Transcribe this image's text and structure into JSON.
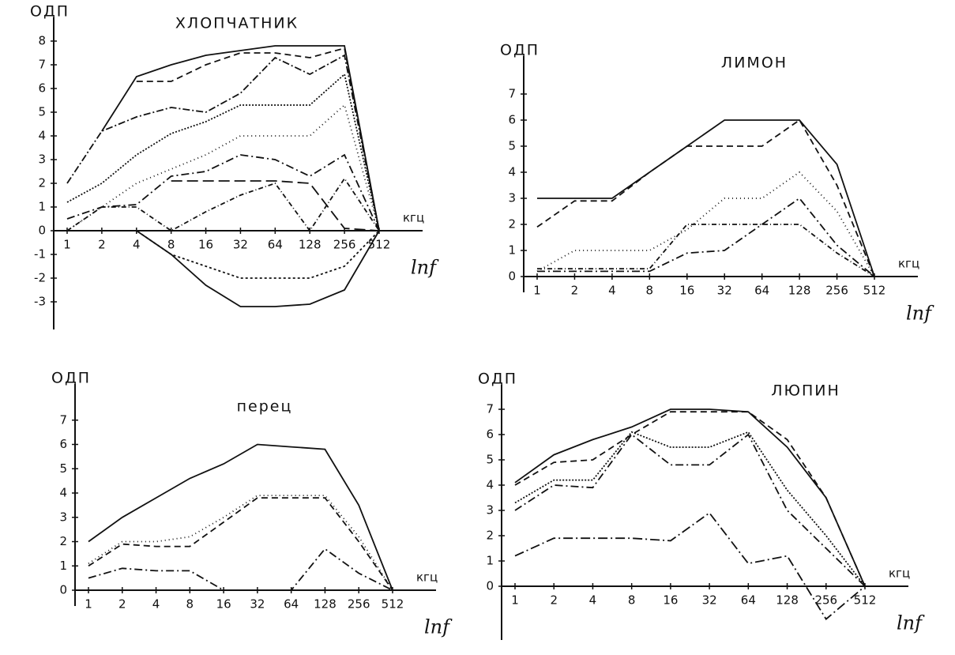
{
  "chart_data": [
    {
      "type": "line",
      "title": "ХЛОПЧАТНИК",
      "ylabel": "ОДП",
      "xlabel": "кгц",
      "x_scale_label": "lnf",
      "log_x": true,
      "x": [
        1,
        2,
        4,
        8,
        16,
        32,
        64,
        128,
        256,
        512
      ],
      "xlim": [
        1,
        512
      ],
      "xticks": [
        1,
        2,
        4,
        8,
        16,
        32,
        64,
        128,
        256,
        512
      ],
      "ylim": [
        -3.5,
        8.5
      ],
      "yticks": [
        -3,
        -2,
        -1,
        0,
        1,
        2,
        3,
        4,
        5,
        6,
        7,
        8
      ],
      "series": [
        {
          "color": "#111",
          "dash": "none",
          "values": [
            null,
            4.2,
            6.5,
            7.0,
            7.4,
            7.6,
            7.8,
            7.8,
            7.8,
            0
          ]
        },
        {
          "color": "#111",
          "dash": "8 5",
          "values": [
            null,
            null,
            6.3,
            6.3,
            7.0,
            7.5,
            7.5,
            7.3,
            7.7,
            0
          ]
        },
        {
          "color": "#111",
          "dash": "9 3 2 3",
          "values": [
            2,
            4.2,
            4.8,
            5.2,
            5.0,
            5.8,
            7.3,
            6.6,
            7.4,
            0
          ]
        },
        {
          "color": "#111",
          "dash": "2 2",
          "values": [
            1.2,
            2.0,
            3.2,
            4.1,
            4.6,
            5.3,
            5.3,
            5.3,
            6.6,
            0
          ]
        },
        {
          "color": "#111",
          "dash": "1 4",
          "values": [
            0,
            1.0,
            2.0,
            2.6,
            3.2,
            4.0,
            4.0,
            4.0,
            5.3,
            0
          ]
        },
        {
          "color": "#111",
          "dash": "10 4 2 4",
          "values": [
            0.5,
            1.0,
            1.1,
            2.3,
            2.5,
            3.2,
            3.0,
            2.3,
            3.2,
            0
          ]
        },
        {
          "color": "#111",
          "dash": "14 6",
          "values": [
            null,
            null,
            null,
            2.1,
            2.1,
            2.1,
            2.1,
            2.0,
            0.1,
            0
          ]
        },
        {
          "color": "#111",
          "dash": "6 3 1 3",
          "values": [
            0,
            1.0,
            1.0,
            0,
            0.8,
            1.5,
            2.0,
            0,
            2.2,
            0
          ]
        },
        {
          "color": "#111",
          "dash": "3 3",
          "values": [
            0,
            0,
            0,
            -1,
            -1.5,
            -2,
            -2,
            -2,
            -1.5,
            0
          ]
        },
        {
          "color": "#111",
          "dash": "none",
          "values": [
            0,
            0,
            0,
            -1,
            -2.3,
            -3.2,
            -3.2,
            -3.1,
            -2.5,
            0
          ]
        }
      ]
    },
    {
      "type": "line",
      "title": "ЛИМОН",
      "ylabel": "ОДП",
      "xlabel": "кгц",
      "x_scale_label": "lnf",
      "log_x": true,
      "x": [
        1,
        2,
        4,
        8,
        16,
        32,
        64,
        128,
        256,
        512
      ],
      "xlim": [
        1,
        512
      ],
      "xticks": [
        1,
        2,
        4,
        8,
        16,
        32,
        64,
        128,
        256,
        512
      ],
      "ylim": [
        0,
        8
      ],
      "yticks": [
        0,
        1,
        2,
        3,
        4,
        5,
        6,
        7
      ],
      "series": [
        {
          "color": "#111",
          "dash": "none",
          "values": [
            3,
            3,
            3,
            4,
            5,
            6,
            6,
            6,
            4.3,
            0
          ]
        },
        {
          "color": "#111",
          "dash": "8 5",
          "values": [
            1.9,
            2.9,
            2.9,
            4,
            5,
            5,
            5,
            6,
            3.5,
            0
          ]
        },
        {
          "color": "#111",
          "dash": "1 4",
          "values": [
            0.2,
            1,
            1,
            1,
            1.8,
            3,
            3,
            4,
            2.5,
            0
          ]
        },
        {
          "color": "#111",
          "dash": "10 4 2 4",
          "values": [
            0.2,
            0.2,
            0.2,
            0.2,
            0.9,
            1.0,
            2.0,
            3.0,
            1.2,
            0
          ]
        },
        {
          "color": "#111",
          "dash": "6 3 1 3",
          "values": [
            0.3,
            0.3,
            0.3,
            0.3,
            2,
            2,
            2,
            2,
            0.9,
            0
          ]
        }
      ]
    },
    {
      "type": "line",
      "title": "перец",
      "ylabel": "ОДП",
      "xlabel": "кгц",
      "x_scale_label": "lnf",
      "log_x": true,
      "x": [
        1,
        2,
        4,
        8,
        16,
        32,
        64,
        128,
        256,
        512
      ],
      "xlim": [
        1,
        512
      ],
      "xticks": [
        1,
        2,
        4,
        8,
        16,
        32,
        64,
        128,
        256,
        512
      ],
      "ylim": [
        0,
        8
      ],
      "yticks": [
        0,
        1,
        2,
        3,
        4,
        5,
        6,
        7
      ],
      "series": [
        {
          "color": "#111",
          "dash": "none",
          "values": [
            2,
            3,
            3.8,
            4.6,
            5.2,
            6,
            5.9,
            5.8,
            3.5,
            0
          ]
        },
        {
          "color": "#111",
          "dash": "1 4",
          "values": [
            1.1,
            2,
            2,
            2.2,
            3,
            3.9,
            3.9,
            3.9,
            2.2,
            0
          ]
        },
        {
          "color": "#111",
          "dash": "8 5",
          "values": [
            1,
            1.9,
            1.8,
            1.8,
            2.8,
            3.8,
            3.8,
            3.8,
            2,
            0
          ]
        },
        {
          "color": "#111",
          "dash": "10 4 2 4",
          "values": [
            0.5,
            0.9,
            0.8,
            0.8,
            0,
            0,
            0,
            1.7,
            0.7,
            0
          ]
        }
      ]
    },
    {
      "type": "line",
      "title": "ЛЮПИН",
      "ylabel": "ОДП",
      "xlabel": "кгц",
      "x_scale_label": "lnf",
      "log_x": true,
      "x": [
        1,
        2,
        4,
        8,
        16,
        32,
        64,
        128,
        256,
        512
      ],
      "xlim": [
        1,
        512
      ],
      "xticks": [
        1,
        2,
        4,
        8,
        16,
        32,
        64,
        128,
        256,
        512
      ],
      "ylim": [
        -1.5,
        7.5
      ],
      "yticks": [
        0,
        1,
        2,
        3,
        4,
        5,
        6,
        7
      ],
      "series": [
        {
          "color": "#111",
          "dash": "none",
          "values": [
            4.1,
            5.2,
            5.8,
            6.3,
            7,
            7,
            6.9,
            5.5,
            3.5,
            0
          ]
        },
        {
          "color": "#111",
          "dash": "8 5",
          "values": [
            4,
            4.9,
            5,
            6,
            6.9,
            6.9,
            6.9,
            5.8,
            3.5,
            0
          ]
        },
        {
          "color": "#111",
          "dash": "2 2",
          "values": [
            3.3,
            4.2,
            4.2,
            6.1,
            5.5,
            5.5,
            6.1,
            3.8,
            2,
            0
          ]
        },
        {
          "color": "#111",
          "dash": "10 4 2 4",
          "values": [
            3,
            4,
            3.9,
            6,
            4.8,
            4.8,
            6,
            3,
            1.5,
            0
          ]
        },
        {
          "color": "#111",
          "dash": "12 4 2 4",
          "values": [
            1.2,
            1.9,
            1.9,
            1.9,
            1.8,
            2.9,
            0.9,
            1.2,
            -1.3,
            0
          ]
        }
      ]
    }
  ]
}
